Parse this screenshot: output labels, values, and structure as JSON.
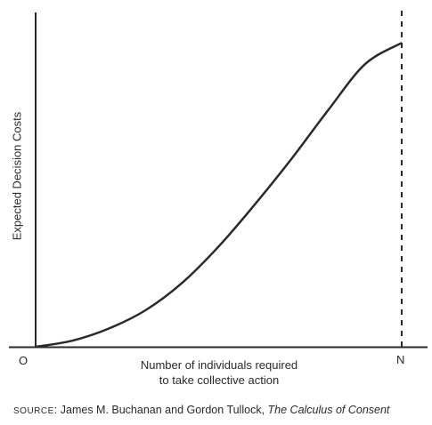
{
  "chart_data": {
    "type": "line",
    "title": "",
    "xlabel_lines": [
      "Number of individuals required",
      "to take collective action"
    ],
    "ylabel": "Expected Decision Costs",
    "x_tick_labels": {
      "origin": "O",
      "end": "N"
    },
    "x": [
      0,
      0.1,
      0.2,
      0.3,
      0.4,
      0.5,
      0.6,
      0.7,
      0.8,
      0.9,
      1.0
    ],
    "series": [
      {
        "values": [
          0,
          0.02,
          0.06,
          0.12,
          0.21,
          0.33,
          0.47,
          0.62,
          0.78,
          0.93,
          1.0
        ]
      }
    ],
    "xlim": [
      0,
      1
    ],
    "ylim": [
      0,
      1.1
    ],
    "vertical_reference": {
      "at": "N",
      "style": "dashed"
    },
    "grid": false,
    "legend": "none"
  },
  "source": {
    "prefix": "SOURCE",
    "authors": "James M. Buchanan and Gordon Tullock,",
    "book": "The Calculus of Consent"
  },
  "colors": {
    "axis": "#2a2a2a",
    "curve": "#2a2a2a",
    "background": "#ffffff"
  }
}
